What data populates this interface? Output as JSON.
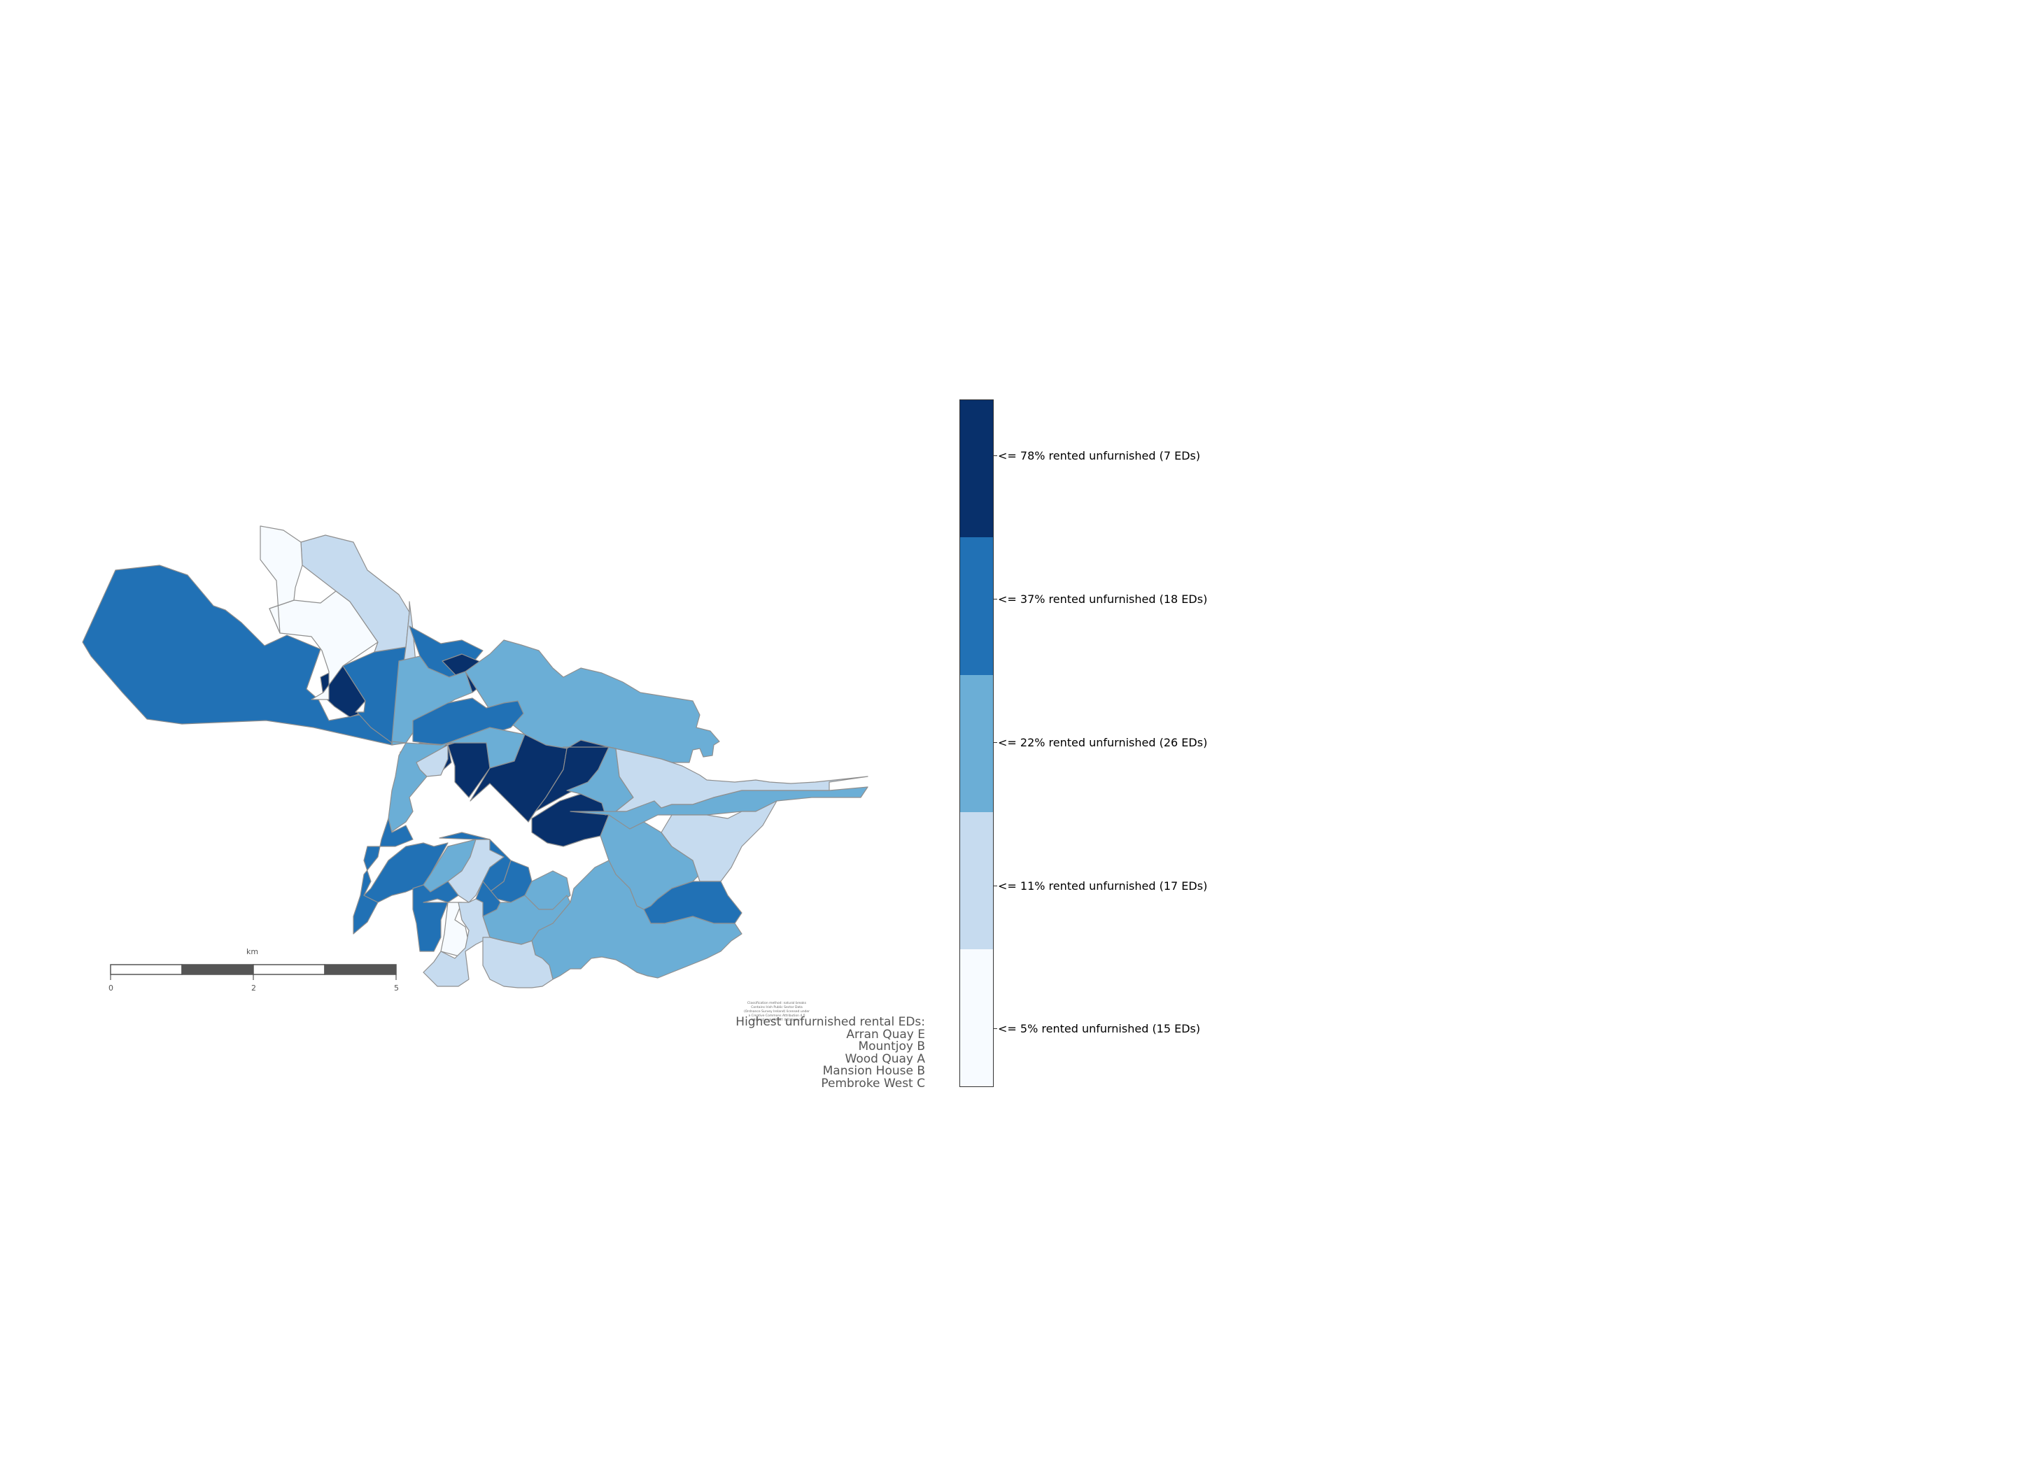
{
  "palette": {
    "class1": "#f7fbff",
    "class2": "#c6dbef",
    "class3": "#6baed6",
    "class4": "#2171b5",
    "class5": "#08306b",
    "boundary": "#8f8f8f"
  },
  "legend": {
    "items": [
      {
        "label": "<= 78% rented unfurnished (7 EDs)",
        "color": "#08306b"
      },
      {
        "label": "<= 37% rented unfurnished (18 EDs)",
        "color": "#2171b5"
      },
      {
        "label": "<= 22% rented unfurnished (26 EDs)",
        "color": "#6baed6"
      },
      {
        "label": "<= 11% rented unfurnished (17 EDs)",
        "color": "#c6dbef"
      },
      {
        "label": "<= 5% rented unfurnished (15 EDs)",
        "color": "#f7fbff"
      }
    ]
  },
  "scalebar": {
    "unit": "km",
    "ticks": [
      "0",
      "2",
      "5"
    ]
  },
  "credit": {
    "lines": [
      "Classification method: natural breaks",
      "Contains Irish Public Sector Data",
      "(Ordnance Survey Ireland) licensed under",
      "a Creative Commons Attribution 4.0",
      "International (CC BY 4.0) licence"
    ]
  },
  "highest": {
    "title": "Highest unfurnished rental EDs:",
    "items": [
      "Arran Quay E",
      "Mountjoy B",
      "Wood Quay A",
      "Mansion House B",
      "Pembroke West C"
    ]
  }
}
